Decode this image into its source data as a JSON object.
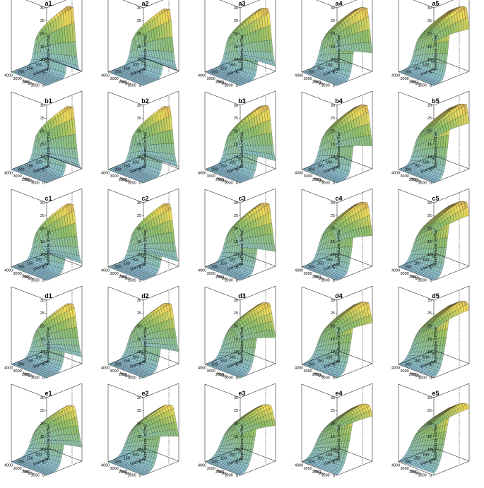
{
  "chart_data": {
    "type": "surface-3d-grid",
    "rows": [
      "a",
      "b",
      "c",
      "d",
      "e"
    ],
    "cols": [
      1,
      2,
      3,
      4,
      5
    ],
    "panels": [
      {
        "id": "a1",
        "label": "a1",
        "peak_height": 28,
        "width": 0.08,
        "plateau": 0.0
      },
      {
        "id": "a2",
        "label": "a2",
        "peak_height": 27,
        "width": 0.09,
        "plateau": 0.0
      },
      {
        "id": "a3",
        "label": "a3",
        "peak_height": 27,
        "width": 0.1,
        "plateau": 0.05
      },
      {
        "id": "a4",
        "label": "a4",
        "peak_height": 27,
        "width": 0.11,
        "plateau": 0.1
      },
      {
        "id": "a5",
        "label": "a5",
        "peak_height": 27,
        "width": 0.12,
        "plateau": 0.16
      },
      {
        "id": "b1",
        "label": "b1",
        "peak_height": 27,
        "width": 0.09,
        "plateau": 0.0
      },
      {
        "id": "b2",
        "label": "b2",
        "peak_height": 27,
        "width": 0.1,
        "plateau": 0.0
      },
      {
        "id": "b3",
        "label": "b3",
        "peak_height": 27,
        "width": 0.11,
        "plateau": 0.05
      },
      {
        "id": "b4",
        "label": "b4",
        "peak_height": 27,
        "width": 0.12,
        "plateau": 0.1
      },
      {
        "id": "b5",
        "label": "b5",
        "peak_height": 27,
        "width": 0.13,
        "plateau": 0.16
      },
      {
        "id": "c1",
        "label": "c1",
        "peak_height": 27,
        "width": 0.11,
        "plateau": 0.0
      },
      {
        "id": "c2",
        "label": "c2",
        "peak_height": 27,
        "width": 0.12,
        "plateau": 0.0
      },
      {
        "id": "c3",
        "label": "c3",
        "peak_height": 27,
        "width": 0.13,
        "plateau": 0.05
      },
      {
        "id": "c4",
        "label": "c4",
        "peak_height": 27,
        "width": 0.14,
        "plateau": 0.1
      },
      {
        "id": "c5",
        "label": "c5",
        "peak_height": 27,
        "width": 0.15,
        "plateau": 0.16
      },
      {
        "id": "d1",
        "label": "d1",
        "peak_height": 26,
        "width": 0.13,
        "plateau": 0.0
      },
      {
        "id": "d2",
        "label": "d2",
        "peak_height": 26,
        "width": 0.14,
        "plateau": 0.02
      },
      {
        "id": "d3",
        "label": "d3",
        "peak_height": 26,
        "width": 0.16,
        "plateau": 0.06
      },
      {
        "id": "d4",
        "label": "d4",
        "peak_height": 26,
        "width": 0.17,
        "plateau": 0.11
      },
      {
        "id": "d5",
        "label": "d5",
        "peak_height": 26,
        "width": 0.18,
        "plateau": 0.16
      },
      {
        "id": "e1",
        "label": "e1",
        "peak_height": 24,
        "width": 0.15,
        "plateau": 0.02
      },
      {
        "id": "e2",
        "label": "e2",
        "peak_height": 24,
        "width": 0.17,
        "plateau": 0.05
      },
      {
        "id": "e3",
        "label": "e3",
        "peak_height": 24,
        "width": 0.19,
        "plateau": 0.08
      },
      {
        "id": "e4",
        "label": "e4",
        "peak_height": 24,
        "width": 0.2,
        "plateau": 0.12
      },
      {
        "id": "e5",
        "label": "e5",
        "peak_height": 24,
        "width": 0.21,
        "plateau": 0.16
      }
    ],
    "zlabel": "Stem volume (m³/ha)",
    "xlabel": "Height",
    "ylabel": "Diameter",
    "z_ticks": [
      "0",
      "5",
      "10",
      "15",
      "20",
      "25",
      "30"
    ],
    "x_ticks": [
      "1000",
      "2000",
      "3000",
      "4000"
    ],
    "y_ticks": [
      "50",
      "100",
      "150",
      "200"
    ],
    "zlim": [
      0,
      30
    ],
    "colors": {
      "low": "#8fc3d8",
      "mid": "#8fbf6a",
      "high": "#f0dc5a",
      "top": "#b8865a",
      "mesh": "#222222"
    }
  }
}
